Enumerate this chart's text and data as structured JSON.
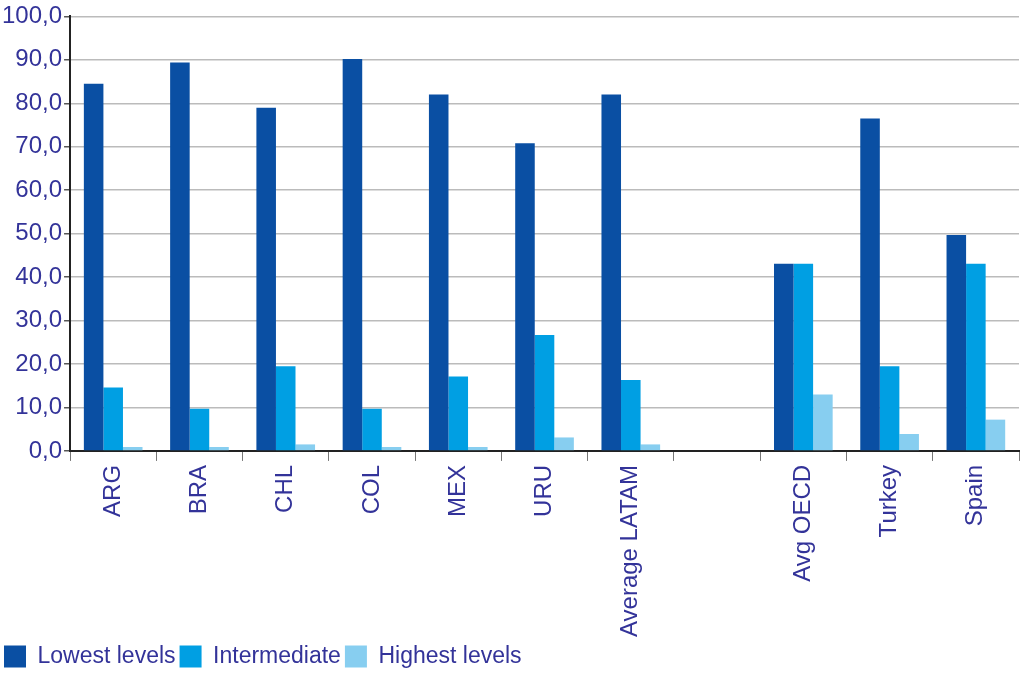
{
  "chart_data": {
    "type": "bar",
    "categories": [
      "ARG",
      "BRA",
      "CHL",
      "COL",
      "MEX",
      "URU",
      "Average LATAM",
      null,
      "Avg OECD",
      "Turkey",
      "Spain"
    ],
    "series": [
      {
        "name": "Lowest levels",
        "color": "#0a4fa3",
        "values": [
          84.5,
          89.4,
          79.0,
          90.2,
          82.0,
          70.8,
          82.0,
          null,
          43.1,
          76.5,
          49.7
        ]
      },
      {
        "name": "Intermediate",
        "color": "#009fe3",
        "values": [
          14.6,
          9.7,
          19.5,
          9.7,
          17.1,
          26.7,
          16.3,
          null,
          43.1,
          19.5,
          43.1
        ]
      },
      {
        "name": "Highest levels",
        "color": "#87cef0",
        "values": [
          0.9,
          0.9,
          1.5,
          0.9,
          0.9,
          3.1,
          1.5,
          null,
          13.0,
          3.9,
          7.2
        ]
      }
    ],
    "ylim": [
      0,
      100
    ],
    "yticks": [
      {
        "value": 0,
        "label": "0,0"
      },
      {
        "value": 10,
        "label": "10,0"
      },
      {
        "value": 20,
        "label": "20,0"
      },
      {
        "value": 30,
        "label": "30,0"
      },
      {
        "value": 40,
        "label": "40,0"
      },
      {
        "value": 50,
        "label": "50,0"
      },
      {
        "value": 60,
        "label": "60,0"
      },
      {
        "value": 70,
        "label": "70,0"
      },
      {
        "value": 80,
        "label": "80,0"
      },
      {
        "value": 90,
        "label": "90,0"
      },
      {
        "value": 100,
        "label": "100,0"
      }
    ],
    "grid": "y",
    "legend": "bottom left"
  }
}
